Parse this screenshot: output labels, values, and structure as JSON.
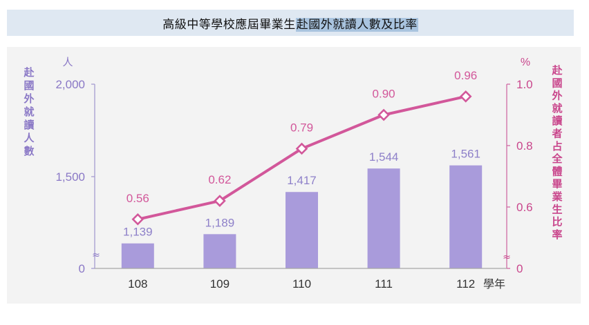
{
  "title": {
    "prefix": "高級中等學校應屆畢業生",
    "highlight": "赴國外就讀人數及比率"
  },
  "colors": {
    "bar": "#a99bdb",
    "bar_label": "#8e80c9",
    "line": "#d2579a",
    "left_axis": "#8a78c6",
    "right_axis": "#c9468c",
    "x_label": "#333333"
  },
  "chart_data": {
    "type": "bar+line",
    "categories": [
      "108",
      "109",
      "110",
      "111",
      "112"
    ],
    "x_unit_label": "學年",
    "bars": {
      "values": [
        1139,
        1189,
        1417,
        1544,
        1561
      ],
      "labels": [
        "1,139",
        "1,189",
        "1,417",
        "1,544",
        "1,561"
      ]
    },
    "line": {
      "values": [
        0.56,
        0.62,
        0.79,
        0.9,
        0.96
      ],
      "labels": [
        "0.56",
        "0.62",
        "0.79",
        "0.90",
        "0.96"
      ]
    },
    "left_axis": {
      "unit": "人",
      "title": "赴國外就讀人數",
      "ticks": [
        {
          "value": 0,
          "label": "0"
        },
        {
          "value": 1500,
          "label": "1,500"
        },
        {
          "value": 2000,
          "label": "2,000"
        }
      ],
      "axis_break": "≈"
    },
    "right_axis": {
      "unit": "%",
      "title": "赴國外就讀者占全體畢業生比率",
      "ticks": [
        {
          "value": 0,
          "label": "0"
        },
        {
          "value": 0.6,
          "label": "0.6"
        },
        {
          "value": 0.8,
          "label": "0.8"
        },
        {
          "value": 1.0,
          "label": "1.0"
        }
      ],
      "axis_break": "≈"
    },
    "grid": false,
    "legend": "none"
  }
}
